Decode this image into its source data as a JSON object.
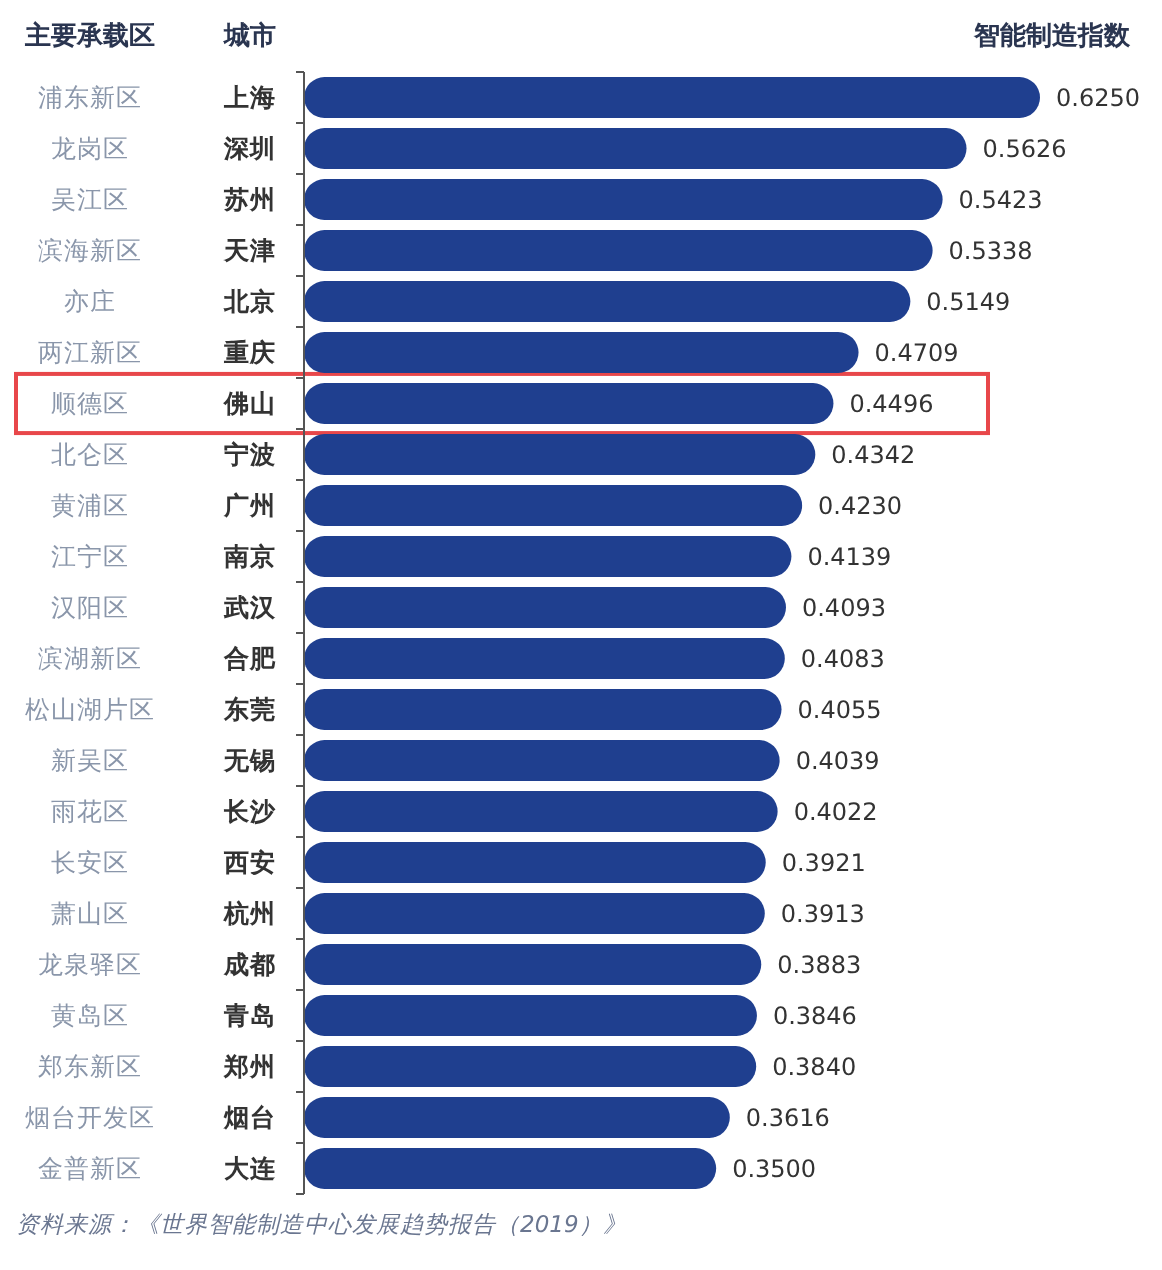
{
  "chart_data": {
    "type": "bar",
    "orientation": "horizontal",
    "xlabel": "智能制造指数",
    "ylabel": "城市",
    "y2label": "主要承载区",
    "categories": [
      "上海",
      "深圳",
      "苏州",
      "天津",
      "北京",
      "重庆",
      "佛山",
      "宁波",
      "广州",
      "南京",
      "武汉",
      "合肥",
      "东莞",
      "无锡",
      "长沙",
      "西安",
      "杭州",
      "成都",
      "青岛",
      "郑州",
      "烟台",
      "大连"
    ],
    "y2_categories": [
      "浦东新区",
      "龙岗区",
      "吴江区",
      "滨海新区",
      "亦庄",
      "两江新区",
      "顺德区",
      "北仑区",
      "黄浦区",
      "江宁区",
      "汉阳区",
      "滨湖新区",
      "松山湖片区",
      "新吴区",
      "雨花区",
      "长安区",
      "萧山区",
      "龙泉驿区",
      "黄岛区",
      "郑东新区",
      "烟台开发区",
      "金普新区"
    ],
    "values": [
      0.625,
      0.5626,
      0.5423,
      0.5338,
      0.5149,
      0.4709,
      0.4496,
      0.4342,
      0.423,
      0.4139,
      0.4093,
      0.4083,
      0.4055,
      0.4039,
      0.4022,
      0.3921,
      0.3913,
      0.3883,
      0.3846,
      0.384,
      0.3616,
      0.35
    ],
    "value_labels": [
      "0.6250",
      "0.5626",
      "0.5423",
      "0.5338",
      "0.5149",
      "0.4709",
      "0.4496",
      "0.4342",
      "0.4230",
      "0.4139",
      "0.4093",
      "0.4083",
      "0.4055",
      "0.4039",
      "0.4022",
      "0.3921",
      "0.3913",
      "0.3883",
      "0.3846",
      "0.3840",
      "0.3616",
      "0.3500"
    ],
    "color": "#1f3f8f",
    "annotations": [
      "资料来源：《世界智能制造中心发展趋势报告（2019）》"
    ]
  }
}
